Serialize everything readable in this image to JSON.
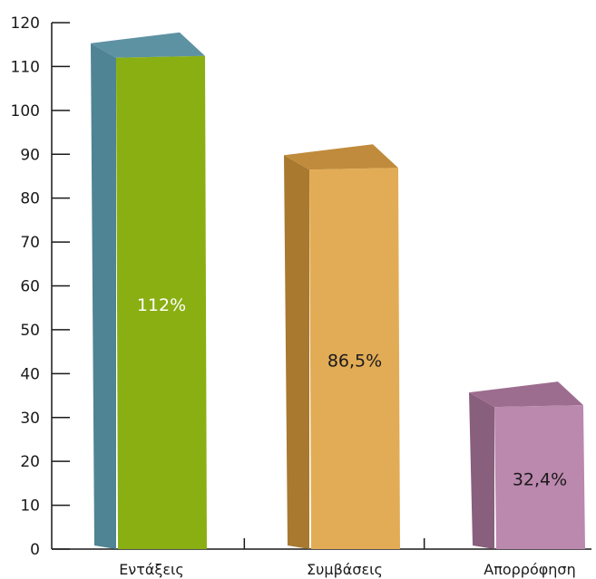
{
  "chart_data": {
    "type": "bar",
    "categories": [
      "Εντάξεις",
      "Συμβάσεις",
      "Απορρόφηση"
    ],
    "values": [
      112,
      86.5,
      32.4
    ],
    "data_labels": [
      "112%",
      "86,5%",
      "32,4%"
    ],
    "ylim": [
      0,
      120
    ],
    "yticks": [
      0,
      10,
      20,
      30,
      40,
      50,
      60,
      70,
      80,
      90,
      100,
      110,
      120
    ],
    "ytick_labels": [
      "0",
      "10",
      "20",
      "30",
      "40",
      "50",
      "60",
      "70",
      "80",
      "90",
      "100",
      "110",
      "120"
    ],
    "grid": false,
    "style": "3d-column",
    "bar_colors": [
      {
        "front": "#8aaf12",
        "side": "#4f8494",
        "top": "#5d92a3",
        "label": "#ffffff"
      },
      {
        "front": "#e2ac56",
        "side": "#a8792f",
        "top": "#c08b3c",
        "label": "#1a1a1a"
      },
      {
        "front": "#bb88ae",
        "side": "#885f7c",
        "top": "#9c6d8f",
        "label": "#1a1a1a"
      }
    ]
  }
}
